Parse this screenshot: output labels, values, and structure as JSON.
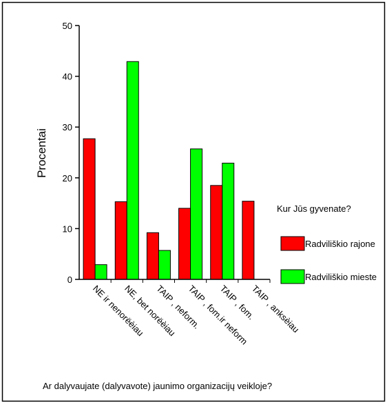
{
  "chart_data": {
    "type": "bar",
    "title": "",
    "ylabel": "Procentai",
    "xlabel": "Ar dalyvaujate (dalyvavote) jaunimo organizacijų veikloje?",
    "ylim": [
      0,
      50
    ],
    "yticks": [
      0,
      10,
      20,
      30,
      40,
      50
    ],
    "grid": false,
    "legend_position": "right",
    "legend_title": "Kur Jūs gyvenate?",
    "categories": [
      "NE ir nenorëèiau",
      "NE, bet norëèiau",
      "TAIP , neform.",
      "TAIP , fom.ir neform",
      "TAIP , fom.",
      "TAIP , anksèiau"
    ],
    "series": [
      {
        "name": "Radviliškio rajone",
        "color": "#ff0000",
        "values": [
          27.7,
          15.3,
          9.2,
          14.0,
          18.5,
          15.4
        ]
      },
      {
        "name": "Radviliškio mieste",
        "color": "#00ff00",
        "values": [
          2.9,
          42.9,
          5.7,
          25.7,
          22.9,
          0
        ]
      }
    ]
  }
}
